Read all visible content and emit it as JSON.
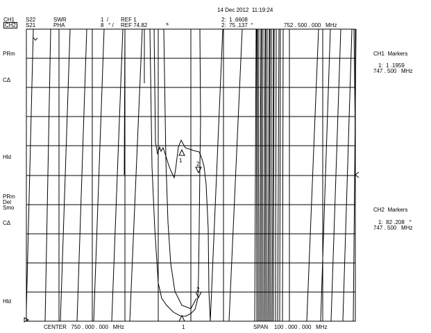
{
  "header": {
    "timestamp": "14 Dec 2012  11:19:24",
    "ch1": {
      "label": "CH1",
      "param": "S22",
      "format": "SWR",
      "scale": "1  /",
      "ref": "REF 1"
    },
    "ch2": {
      "label": "CH2",
      "param": "S21",
      "format": "PHA",
      "scale": "8   ° /",
      "ref": "REF 74.82",
      "ref_unit": "°"
    },
    "marker2_ch1": "2:  1 .6608",
    "marker2_ch2": "2:  75 .137  °",
    "marker2_freq": "752 . 500 . 000   MHz"
  },
  "left_labels": {
    "prm1": "PRm",
    "ca1": "CΔ",
    "hld1": "Hld",
    "prm2": "PRm",
    "del": "Del",
    "smo": "Smo",
    "ca2": "CΔ",
    "hld2": "Hld"
  },
  "right_panel": {
    "ch1_title": "CH1  Markers",
    "ch1_m1_value": "1:  1 .1959",
    "ch1_m1_freq": "747 . 500   MHz",
    "ch2_title": "CH2  Markers",
    "ch2_m1_value": "1:  82 .208   °",
    "ch2_m1_freq": "747 . 500   MHz"
  },
  "footer": {
    "center": "CENTER   750 . 000 . 000   MHz",
    "span": "SPAN    100 . 000 . 000   MHz",
    "marker1_label": "1"
  },
  "chart_data": {
    "type": "line",
    "grid": true,
    "x_center_mhz": 750,
    "x_span_mhz": 100,
    "x_divisions": 10,
    "y_divisions": 10,
    "markers": [
      {
        "id": "1",
        "freq_mhz": 747.5,
        "ch1_value": 1.1959,
        "ch2_value_deg": 82.208
      },
      {
        "id": "2",
        "freq_mhz": 752.5,
        "ch1_value": 1.6608,
        "ch2_value_deg": 75.137
      }
    ]
  }
}
